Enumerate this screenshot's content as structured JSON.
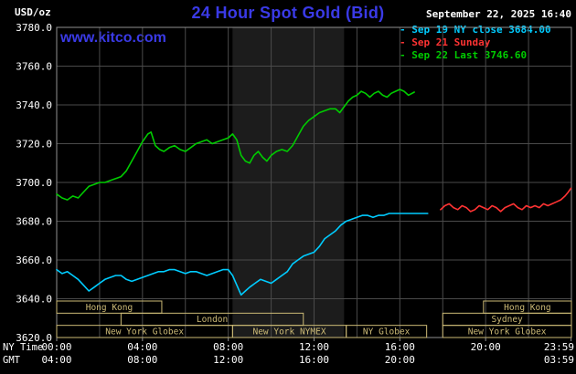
{
  "header": {
    "units": "USD/oz",
    "title": "24 Hour Spot Gold (Bid)",
    "datetime": "September 22, 2025 16:40",
    "watermark": "www.kitco.com"
  },
  "legend": {
    "items": [
      {
        "text": "- Sep 19 NY close 3684.00",
        "color": "#00ccff"
      },
      {
        "text": "- Sep 21 Sunday",
        "color": "#ff3333"
      },
      {
        "text": "- Sep 22 Last 3746.60",
        "color": "#00cc00"
      }
    ]
  },
  "axis": {
    "ny_time_label": "NY Time",
    "gmt_label": "GMT"
  },
  "colors": {
    "title_blue": "#3a3ae6",
    "grid": "#4a4a4a",
    "plot_border": "#909090",
    "band": "#1c1c1c",
    "session": "#ccba76",
    "tick_text": "#ffffff"
  },
  "chart_data": {
    "type": "line",
    "title": "24 Hour Spot Gold (Bid)",
    "ylabel": "USD/oz",
    "xlim": [
      0,
      24
    ],
    "ylim": [
      3620,
      3780
    ],
    "grid_x_step": 2,
    "grid": true,
    "legend_position": "top-right",
    "band": {
      "t0": 8.2,
      "t1": 13.4,
      "name": "New York NYMEX hours"
    },
    "yticks": [
      {
        "v": 3780,
        "label": "3780.0"
      },
      {
        "v": 3760,
        "label": "3760.0"
      },
      {
        "v": 3740,
        "label": "3740.0"
      },
      {
        "v": 3720,
        "label": "3720.0"
      },
      {
        "v": 3700,
        "label": "3700.0"
      },
      {
        "v": 3680,
        "label": "3680.0"
      },
      {
        "v": 3660,
        "label": "3660.0"
      },
      {
        "v": 3640,
        "label": "3640.0"
      },
      {
        "v": 3620,
        "label": "3620.0"
      }
    ],
    "xticks_ny": [
      {
        "t": 0,
        "label": "00:00"
      },
      {
        "t": 4,
        "label": "04:00"
      },
      {
        "t": 8,
        "label": "08:00"
      },
      {
        "t": 12,
        "label": "12:00"
      },
      {
        "t": 16,
        "label": "16:00"
      },
      {
        "t": 20,
        "label": "20:00"
      },
      {
        "t": 23.983,
        "label": "23:59"
      }
    ],
    "xticks_gmt": [
      {
        "t": 0,
        "label": "04:00"
      },
      {
        "t": 4,
        "label": "08:00"
      },
      {
        "t": 8,
        "label": "12:00"
      },
      {
        "t": 12,
        "label": "16:00"
      },
      {
        "t": 16,
        "label": "20:00"
      },
      {
        "t": 23.983,
        "label": "03:59"
      }
    ],
    "series": [
      {
        "id": "sep19",
        "name": "Sep 19 NY close",
        "close": 3684.0,
        "color": "#00ccff",
        "points": [
          [
            0,
            3655
          ],
          [
            0.25,
            3653
          ],
          [
            0.5,
            3654
          ],
          [
            0.75,
            3652
          ],
          [
            1,
            3650
          ],
          [
            1.25,
            3647
          ],
          [
            1.5,
            3644
          ],
          [
            1.75,
            3646
          ],
          [
            2,
            3648
          ],
          [
            2.25,
            3650
          ],
          [
            2.5,
            3651
          ],
          [
            2.75,
            3652
          ],
          [
            3,
            3652
          ],
          [
            3.25,
            3650
          ],
          [
            3.5,
            3649
          ],
          [
            3.75,
            3650
          ],
          [
            4,
            3651
          ],
          [
            4.25,
            3652
          ],
          [
            4.5,
            3653
          ],
          [
            4.75,
            3654
          ],
          [
            5,
            3654
          ],
          [
            5.25,
            3655
          ],
          [
            5.5,
            3655
          ],
          [
            5.75,
            3654
          ],
          [
            6,
            3653
          ],
          [
            6.25,
            3654
          ],
          [
            6.5,
            3654
          ],
          [
            6.75,
            3653
          ],
          [
            7,
            3652
          ],
          [
            7.25,
            3653
          ],
          [
            7.5,
            3654
          ],
          [
            7.75,
            3655
          ],
          [
            8,
            3655
          ],
          [
            8.2,
            3652
          ],
          [
            8.4,
            3647
          ],
          [
            8.6,
            3642
          ],
          [
            8.8,
            3644
          ],
          [
            9,
            3646
          ],
          [
            9.25,
            3648
          ],
          [
            9.5,
            3650
          ],
          [
            9.75,
            3649
          ],
          [
            10,
            3648
          ],
          [
            10.25,
            3650
          ],
          [
            10.5,
            3652
          ],
          [
            10.75,
            3654
          ],
          [
            11,
            3658
          ],
          [
            11.25,
            3660
          ],
          [
            11.5,
            3662
          ],
          [
            11.75,
            3663
          ],
          [
            12,
            3664
          ],
          [
            12.25,
            3667
          ],
          [
            12.5,
            3671
          ],
          [
            12.75,
            3673
          ],
          [
            13,
            3675
          ],
          [
            13.25,
            3678
          ],
          [
            13.5,
            3680
          ],
          [
            13.75,
            3681
          ],
          [
            14,
            3682
          ],
          [
            14.25,
            3683
          ],
          [
            14.5,
            3683
          ],
          [
            14.75,
            3682
          ],
          [
            15,
            3683
          ],
          [
            15.25,
            3683
          ],
          [
            15.5,
            3684
          ],
          [
            15.75,
            3684
          ],
          [
            16,
            3684
          ],
          [
            16.5,
            3684
          ],
          [
            17,
            3684
          ],
          [
            17.3,
            3684
          ]
        ]
      },
      {
        "id": "sep21",
        "name": "Sep 21 Sunday",
        "color": "#ff3333",
        "points": [
          [
            17.9,
            3686
          ],
          [
            18.1,
            3688
          ],
          [
            18.3,
            3689
          ],
          [
            18.5,
            3687
          ],
          [
            18.7,
            3686
          ],
          [
            18.9,
            3688
          ],
          [
            19.1,
            3687
          ],
          [
            19.3,
            3685
          ],
          [
            19.5,
            3686
          ],
          [
            19.7,
            3688
          ],
          [
            19.9,
            3687
          ],
          [
            20.1,
            3686
          ],
          [
            20.3,
            3688
          ],
          [
            20.5,
            3687
          ],
          [
            20.7,
            3685
          ],
          [
            20.9,
            3687
          ],
          [
            21.1,
            3688
          ],
          [
            21.3,
            3689
          ],
          [
            21.5,
            3687
          ],
          [
            21.7,
            3686
          ],
          [
            21.9,
            3688
          ],
          [
            22.1,
            3687
          ],
          [
            22.3,
            3688
          ],
          [
            22.5,
            3687
          ],
          [
            22.7,
            3689
          ],
          [
            22.9,
            3688
          ],
          [
            23.1,
            3689
          ],
          [
            23.3,
            3690
          ],
          [
            23.5,
            3691
          ],
          [
            23.7,
            3693
          ],
          [
            23.85,
            3695
          ],
          [
            23.98,
            3697
          ]
        ]
      },
      {
        "id": "sep22",
        "name": "Sep 22 Last",
        "last": 3746.6,
        "color": "#00cc00",
        "points": [
          [
            0,
            3694
          ],
          [
            0.25,
            3692
          ],
          [
            0.5,
            3691
          ],
          [
            0.75,
            3693
          ],
          [
            1,
            3692
          ],
          [
            1.25,
            3695
          ],
          [
            1.5,
            3698
          ],
          [
            1.75,
            3699
          ],
          [
            2,
            3700
          ],
          [
            2.25,
            3700
          ],
          [
            2.5,
            3701
          ],
          [
            2.75,
            3702
          ],
          [
            3,
            3703
          ],
          [
            3.25,
            3706
          ],
          [
            3.5,
            3711
          ],
          [
            3.75,
            3716
          ],
          [
            4,
            3721
          ],
          [
            4.25,
            3725
          ],
          [
            4.4,
            3726
          ],
          [
            4.6,
            3719
          ],
          [
            4.8,
            3717
          ],
          [
            5,
            3716
          ],
          [
            5.25,
            3718
          ],
          [
            5.5,
            3719
          ],
          [
            5.75,
            3717
          ],
          [
            6,
            3716
          ],
          [
            6.25,
            3718
          ],
          [
            6.5,
            3720
          ],
          [
            6.75,
            3721
          ],
          [
            7,
            3722
          ],
          [
            7.25,
            3720
          ],
          [
            7.5,
            3721
          ],
          [
            7.75,
            3722
          ],
          [
            8,
            3723
          ],
          [
            8.2,
            3725
          ],
          [
            8.4,
            3722
          ],
          [
            8.6,
            3714
          ],
          [
            8.8,
            3711
          ],
          [
            9,
            3710
          ],
          [
            9.2,
            3714
          ],
          [
            9.4,
            3716
          ],
          [
            9.6,
            3713
          ],
          [
            9.8,
            3711
          ],
          [
            10,
            3714
          ],
          [
            10.25,
            3716
          ],
          [
            10.5,
            3717
          ],
          [
            10.75,
            3716
          ],
          [
            11,
            3719
          ],
          [
            11.25,
            3724
          ],
          [
            11.5,
            3729
          ],
          [
            11.75,
            3732
          ],
          [
            12,
            3734
          ],
          [
            12.25,
            3736
          ],
          [
            12.5,
            3737
          ],
          [
            12.75,
            3738
          ],
          [
            13,
            3738
          ],
          [
            13.2,
            3736
          ],
          [
            13.4,
            3739
          ],
          [
            13.6,
            3742
          ],
          [
            13.8,
            3744
          ],
          [
            14,
            3745
          ],
          [
            14.2,
            3747
          ],
          [
            14.4,
            3746
          ],
          [
            14.6,
            3744
          ],
          [
            14.8,
            3746
          ],
          [
            15,
            3747
          ],
          [
            15.2,
            3745
          ],
          [
            15.4,
            3744
          ],
          [
            15.6,
            3746
          ],
          [
            15.8,
            3747
          ],
          [
            16,
            3748
          ],
          [
            16.2,
            3747
          ],
          [
            16.4,
            3745
          ],
          [
            16.67,
            3746.6
          ]
        ]
      }
    ],
    "sessions": [
      {
        "row": 0,
        "t0": 0,
        "t1": 4.9,
        "label": "Hong Kong"
      },
      {
        "row": 0,
        "t0": 19.9,
        "t1": 24,
        "label": "Hong Kong"
      },
      {
        "row": 1,
        "t0": 3.0,
        "t1": 11.5,
        "label": "London"
      },
      {
        "row": 1,
        "t0": 18.0,
        "t1": 24,
        "label": "Sydney"
      },
      {
        "row": 2,
        "t0": 0,
        "t1": 8.2,
        "label": "New York Globex"
      },
      {
        "row": 2,
        "t0": 8.2,
        "t1": 13.5,
        "label": "New York NYMEX"
      },
      {
        "row": 2,
        "t0": 13.5,
        "t1": 17.25,
        "label": "NY Globex"
      },
      {
        "row": 2,
        "t0": 18.0,
        "t1": 24,
        "label": "New York Globex"
      }
    ]
  }
}
